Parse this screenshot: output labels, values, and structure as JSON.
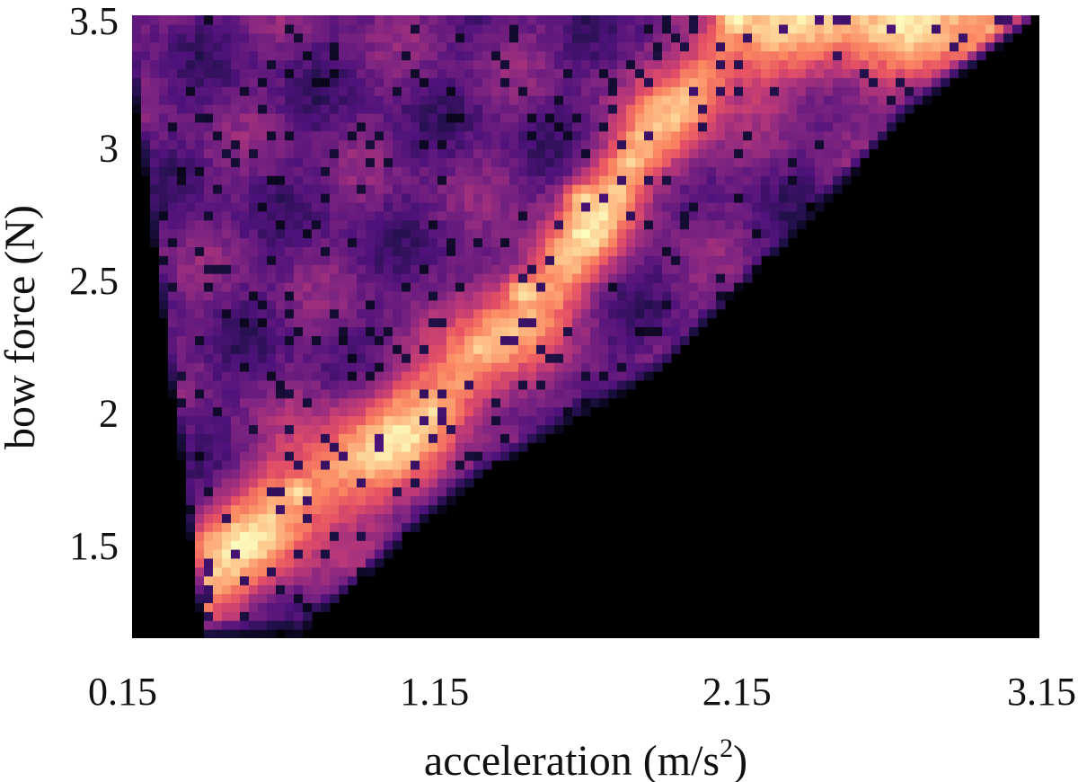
{
  "chart_data": {
    "type": "heatmap",
    "title": "",
    "xlabel": "acceleration (m/s",
    "xlabel_sup": "2",
    "xlabel_close": ")",
    "ylabel": "bow force (N)",
    "xlim": [
      0.15,
      3.15
    ],
    "ylim": [
      1.15,
      3.5
    ],
    "x_ticks": [
      0.15,
      1.15,
      2.15,
      3.15
    ],
    "x_tick_labels": [
      "0.15",
      "1.15",
      "2.15",
      "3.15"
    ],
    "y_ticks": [
      1.5,
      2,
      2.5,
      3,
      3.5
    ],
    "y_tick_labels": [
      "1.5",
      "2",
      "2.5",
      "3",
      "3.5"
    ],
    "colormap": "magma",
    "colormap_stops": [
      "#000004",
      "#1c1044",
      "#4f127b",
      "#812581",
      "#b5367a",
      "#e55064",
      "#fb8761",
      "#fec287",
      "#fcfdbf"
    ],
    "background_color": "#000000",
    "grid": false,
    "legend": "none",
    "ridge": {
      "x": [
        0.2,
        0.45,
        0.75,
        1.0,
        1.15,
        1.3,
        1.5,
        1.7,
        1.85,
        2.0,
        2.15,
        2.5,
        2.9,
        3.1
      ],
      "y": [
        1.2,
        1.45,
        1.7,
        1.9,
        2.0,
        2.2,
        2.45,
        2.75,
        3.0,
        3.2,
        3.45,
        3.48,
        3.5,
        3.5
      ]
    },
    "boundary": {
      "x": [
        0.15,
        0.7,
        1.3,
        1.9,
        2.3,
        2.7,
        3.1,
        3.15
      ],
      "y": [
        1.15,
        1.15,
        1.75,
        2.15,
        2.6,
        3.1,
        3.45,
        3.5
      ]
    },
    "hotspots": [
      {
        "x": 1.15,
        "y": 2.0,
        "v": 0.95
      },
      {
        "x": 1.3,
        "y": 2.25,
        "v": 0.92
      },
      {
        "x": 1.45,
        "y": 2.45,
        "v": 0.95
      },
      {
        "x": 1.6,
        "y": 2.55,
        "v": 0.85
      },
      {
        "x": 1.65,
        "y": 2.8,
        "v": 0.95
      },
      {
        "x": 1.8,
        "y": 2.95,
        "v": 0.92
      },
      {
        "x": 0.7,
        "y": 1.7,
        "v": 0.95
      },
      {
        "x": 2.15,
        "y": 3.48,
        "v": 1.0
      },
      {
        "x": 2.75,
        "y": 3.5,
        "v": 0.95
      },
      {
        "x": 0.35,
        "y": 1.25,
        "v": 0.8
      }
    ]
  }
}
